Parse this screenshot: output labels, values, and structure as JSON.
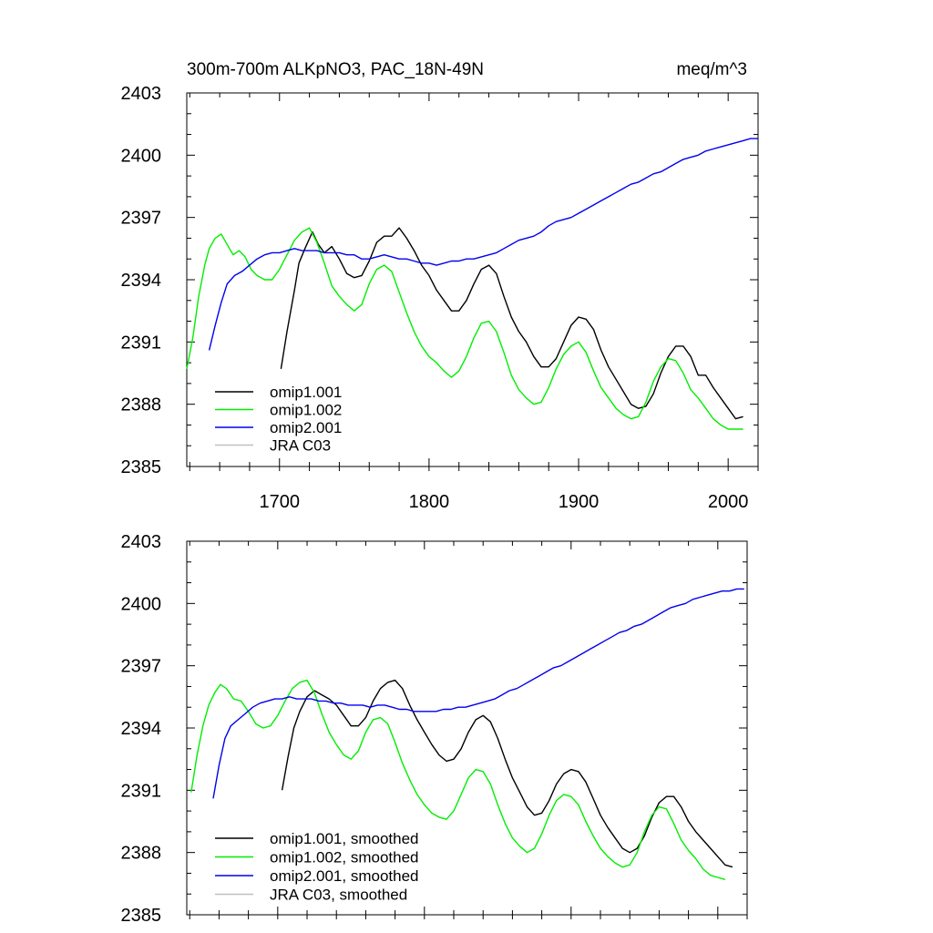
{
  "title_left": "300m-700m ALKpNO3, PAC_18N-49N",
  "title_right": "meq/m^3",
  "colors": {
    "omip1_001": "#000000",
    "omip1_002": "#00ee00",
    "omip2_001": "#0000ee",
    "jra": "#c0c0c0"
  },
  "chart_data": [
    {
      "type": "line",
      "title": "300m-700m ALKpNO3, PAC_18N-49N",
      "units": "meq/m^3",
      "xlim": [
        1638,
        2020
      ],
      "ylim": [
        2385,
        2403
      ],
      "xticks": [
        1700,
        1800,
        1900,
        2000
      ],
      "xtick_labels": [
        "1700",
        "1800",
        "1900",
        "2000"
      ],
      "yticks": [
        2385,
        2388,
        2391,
        2394,
        2397,
        2400,
        2403
      ],
      "ytick_labels": [
        "2385",
        "2388",
        "2391",
        "2394",
        "2397",
        "2400",
        "2403"
      ],
      "legend": [
        "omip1.001",
        "omip1.002",
        "omip2.001",
        "JRA C03"
      ],
      "series": [
        {
          "name": "omip1.001",
          "color": "#000000",
          "x": [
            1701,
            1705,
            1710,
            1713,
            1717,
            1722,
            1726,
            1730,
            1735,
            1740,
            1745,
            1750,
            1755,
            1760,
            1765,
            1770,
            1775,
            1780,
            1785,
            1790,
            1795,
            1800,
            1805,
            1810,
            1815,
            1820,
            1825,
            1830,
            1835,
            1840,
            1845,
            1850,
            1855,
            1860,
            1865,
            1870,
            1875,
            1880,
            1885,
            1890,
            1895,
            1900,
            1905,
            1910,
            1915,
            1920,
            1925,
            1930,
            1935,
            1940,
            1945,
            1950,
            1955,
            1960,
            1965,
            1970,
            1975,
            1980,
            1985,
            1990,
            1995,
            2000,
            2005,
            2010
          ],
          "y": [
            2389.7,
            2391.5,
            2393.5,
            2394.8,
            2395.5,
            2396.3,
            2395.7,
            2395.3,
            2395.6,
            2395.0,
            2394.3,
            2394.1,
            2394.2,
            2394.9,
            2395.8,
            2396.1,
            2396.1,
            2396.5,
            2396.0,
            2395.4,
            2394.7,
            2394.2,
            2393.5,
            2393.0,
            2392.5,
            2392.5,
            2393.0,
            2393.8,
            2394.5,
            2394.7,
            2394.3,
            2393.2,
            2392.2,
            2391.5,
            2391.0,
            2390.3,
            2389.8,
            2389.8,
            2390.2,
            2391.0,
            2391.8,
            2392.2,
            2392.1,
            2391.6,
            2390.6,
            2389.8,
            2389.2,
            2388.6,
            2388.0,
            2387.8,
            2387.9,
            2388.5,
            2389.5,
            2390.3,
            2390.8,
            2390.8,
            2390.3,
            2389.4,
            2389.4,
            2388.8,
            2388.3,
            2387.8,
            2387.3,
            2387.4
          ]
        },
        {
          "name": "omip1.002",
          "color": "#00ee00",
          "x": [
            1638,
            1642,
            1646,
            1650,
            1653,
            1657,
            1661,
            1665,
            1669,
            1673,
            1677,
            1681,
            1685,
            1690,
            1695,
            1700,
            1705,
            1710,
            1715,
            1720,
            1725,
            1730,
            1735,
            1740,
            1745,
            1750,
            1755,
            1760,
            1765,
            1770,
            1775,
            1780,
            1785,
            1790,
            1795,
            1800,
            1805,
            1810,
            1815,
            1820,
            1825,
            1830,
            1835,
            1840,
            1845,
            1850,
            1855,
            1860,
            1865,
            1870,
            1875,
            1880,
            1885,
            1890,
            1895,
            1900,
            1905,
            1910,
            1915,
            1920,
            1925,
            1930,
            1935,
            1940,
            1945,
            1950,
            1955,
            1960,
            1965,
            1970,
            1975,
            1980,
            1985,
            1990,
            1995,
            2000,
            2005,
            2010
          ],
          "y": [
            2389.7,
            2391.2,
            2393.2,
            2394.7,
            2395.5,
            2396.0,
            2396.2,
            2395.7,
            2395.2,
            2395.4,
            2395.1,
            2394.5,
            2394.2,
            2394.0,
            2394.0,
            2394.5,
            2395.2,
            2395.9,
            2396.3,
            2396.5,
            2395.8,
            2394.8,
            2393.7,
            2393.2,
            2392.8,
            2392.5,
            2392.8,
            2393.8,
            2394.5,
            2394.7,
            2394.4,
            2393.4,
            2392.4,
            2391.5,
            2390.8,
            2390.3,
            2390.0,
            2389.6,
            2389.3,
            2389.6,
            2390.3,
            2391.2,
            2391.9,
            2392.0,
            2391.5,
            2390.5,
            2389.4,
            2388.7,
            2388.3,
            2388.0,
            2388.1,
            2388.8,
            2389.7,
            2390.4,
            2390.8,
            2391.0,
            2390.5,
            2389.6,
            2388.8,
            2388.3,
            2387.8,
            2387.5,
            2387.3,
            2387.4,
            2388.1,
            2389.1,
            2389.8,
            2390.2,
            2390.1,
            2389.5,
            2388.7,
            2388.3,
            2387.8,
            2387.3,
            2387.0,
            2386.8,
            2386.8,
            2386.8
          ]
        },
        {
          "name": "omip2.001",
          "color": "#0000ee",
          "x": [
            1653,
            1657,
            1661,
            1665,
            1670,
            1675,
            1680,
            1685,
            1690,
            1695,
            1700,
            1705,
            1710,
            1715,
            1720,
            1725,
            1730,
            1735,
            1740,
            1745,
            1750,
            1755,
            1760,
            1765,
            1770,
            1775,
            1780,
            1785,
            1790,
            1795,
            1800,
            1805,
            1810,
            1815,
            1820,
            1825,
            1830,
            1835,
            1840,
            1845,
            1850,
            1855,
            1860,
            1865,
            1870,
            1875,
            1880,
            1885,
            1890,
            1895,
            1900,
            1905,
            1910,
            1915,
            1920,
            1925,
            1930,
            1935,
            1940,
            1945,
            1950,
            1955,
            1960,
            1965,
            1970,
            1975,
            1980,
            1985,
            1990,
            1995,
            2000,
            2005,
            2010,
            2015,
            2020
          ],
          "y": [
            2390.6,
            2391.8,
            2392.9,
            2393.8,
            2394.2,
            2394.4,
            2394.7,
            2395.0,
            2395.2,
            2395.3,
            2395.3,
            2395.4,
            2395.5,
            2395.4,
            2395.4,
            2395.4,
            2395.3,
            2395.3,
            2395.3,
            2395.2,
            2395.2,
            2395.0,
            2395.0,
            2395.1,
            2395.2,
            2395.1,
            2395.0,
            2395.0,
            2394.9,
            2394.8,
            2394.8,
            2394.7,
            2394.8,
            2394.9,
            2394.9,
            2395.0,
            2395.0,
            2395.1,
            2395.2,
            2395.3,
            2395.5,
            2395.7,
            2395.9,
            2396.0,
            2396.1,
            2396.3,
            2396.6,
            2396.8,
            2396.9,
            2397.0,
            2397.2,
            2397.4,
            2397.6,
            2397.8,
            2398.0,
            2398.2,
            2398.4,
            2398.6,
            2398.7,
            2398.9,
            2399.1,
            2399.2,
            2399.4,
            2399.6,
            2399.8,
            2399.9,
            2400.0,
            2400.2,
            2400.3,
            2400.4,
            2400.5,
            2400.6,
            2400.7,
            2400.8,
            2400.8
          ]
        },
        {
          "name": "JRA C03",
          "color": "#c0c0c0",
          "x": [],
          "y": []
        }
      ]
    },
    {
      "type": "line",
      "title": "",
      "xlim": [
        1638,
        2020
      ],
      "ylim": [
        2385,
        2403
      ],
      "xticks": [
        1700,
        1800,
        1900,
        2000
      ],
      "yticks": [
        2385,
        2388,
        2391,
        2394,
        2397,
        2400,
        2403
      ],
      "ytick_labels": [
        "2385",
        "2388",
        "2391",
        "2394",
        "2397",
        "2400",
        "2403"
      ],
      "legend": [
        "omip1.001, smoothed",
        "omip1.002, smoothed",
        "omip2.001, smoothed",
        "JRA C03, smoothed"
      ],
      "series": [
        {
          "name": "omip1.001, smoothed",
          "color": "#000000",
          "x": [
            1703,
            1707,
            1711,
            1715,
            1720,
            1725,
            1730,
            1735,
            1740,
            1745,
            1750,
            1755,
            1760,
            1765,
            1770,
            1775,
            1780,
            1785,
            1790,
            1795,
            1800,
            1805,
            1810,
            1815,
            1820,
            1825,
            1830,
            1835,
            1840,
            1845,
            1850,
            1855,
            1860,
            1865,
            1870,
            1875,
            1880,
            1885,
            1890,
            1895,
            1900,
            1905,
            1910,
            1915,
            1920,
            1925,
            1930,
            1935,
            1940,
            1945,
            1950,
            1955,
            1960,
            1965,
            1970,
            1975,
            1980,
            1985,
            1990,
            1995,
            2000,
            2005,
            2010
          ],
          "y": [
            2391.0,
            2392.6,
            2394.0,
            2394.8,
            2395.5,
            2395.8,
            2395.6,
            2395.4,
            2395.1,
            2394.6,
            2394.1,
            2394.1,
            2394.5,
            2395.3,
            2395.9,
            2396.2,
            2396.3,
            2395.9,
            2395.1,
            2394.4,
            2393.8,
            2393.2,
            2392.7,
            2392.4,
            2392.5,
            2393.0,
            2393.8,
            2394.4,
            2394.6,
            2394.3,
            2393.5,
            2392.5,
            2391.6,
            2390.9,
            2390.2,
            2389.8,
            2389.9,
            2390.5,
            2391.3,
            2391.8,
            2392.0,
            2391.9,
            2391.4,
            2390.6,
            2389.8,
            2389.2,
            2388.7,
            2388.2,
            2388.0,
            2388.2,
            2388.8,
            2389.7,
            2390.4,
            2390.7,
            2390.7,
            2390.2,
            2389.5,
            2389.0,
            2388.6,
            2388.2,
            2387.8,
            2387.4,
            2387.3
          ]
        },
        {
          "name": "omip1.002, smoothed",
          "color": "#00ee00",
          "x": [
            1641,
            1645,
            1649,
            1653,
            1657,
            1661,
            1665,
            1670,
            1675,
            1680,
            1685,
            1690,
            1695,
            1700,
            1705,
            1710,
            1715,
            1720,
            1725,
            1730,
            1735,
            1740,
            1745,
            1750,
            1755,
            1760,
            1765,
            1770,
            1775,
            1780,
            1785,
            1790,
            1795,
            1800,
            1805,
            1810,
            1815,
            1820,
            1825,
            1830,
            1835,
            1840,
            1845,
            1850,
            1855,
            1860,
            1865,
            1870,
            1875,
            1880,
            1885,
            1890,
            1895,
            1900,
            1905,
            1910,
            1915,
            1920,
            1925,
            1930,
            1935,
            1940,
            1945,
            1950,
            1955,
            1960,
            1965,
            1970,
            1975,
            1980,
            1985,
            1990,
            1995,
            2000,
            2005
          ],
          "y": [
            2390.9,
            2392.7,
            2394.1,
            2395.1,
            2395.7,
            2396.1,
            2395.9,
            2395.4,
            2395.3,
            2394.8,
            2394.2,
            2394.0,
            2394.1,
            2394.6,
            2395.3,
            2395.9,
            2396.2,
            2396.3,
            2395.7,
            2394.7,
            2393.8,
            2393.2,
            2392.7,
            2392.5,
            2392.9,
            2393.8,
            2394.4,
            2394.5,
            2394.2,
            2393.3,
            2392.3,
            2391.5,
            2390.8,
            2390.3,
            2389.9,
            2389.7,
            2389.6,
            2390.0,
            2390.8,
            2391.6,
            2392.0,
            2391.9,
            2391.3,
            2390.3,
            2389.4,
            2388.7,
            2388.3,
            2388.0,
            2388.2,
            2388.9,
            2389.8,
            2390.5,
            2390.8,
            2390.7,
            2390.3,
            2389.5,
            2388.8,
            2388.2,
            2387.8,
            2387.5,
            2387.3,
            2387.4,
            2388.0,
            2389.0,
            2389.8,
            2390.2,
            2390.1,
            2389.4,
            2388.6,
            2388.1,
            2387.7,
            2387.2,
            2386.9,
            2386.8,
            2386.7
          ]
        },
        {
          "name": "omip2.001, smoothed",
          "color": "#0000ee",
          "x": [
            1656,
            1660,
            1664,
            1668,
            1673,
            1678,
            1683,
            1688,
            1693,
            1698,
            1703,
            1708,
            1713,
            1718,
            1723,
            1728,
            1733,
            1738,
            1743,
            1748,
            1753,
            1758,
            1763,
            1768,
            1773,
            1778,
            1783,
            1788,
            1793,
            1798,
            1803,
            1808,
            1813,
            1818,
            1823,
            1828,
            1833,
            1838,
            1843,
            1848,
            1853,
            1858,
            1863,
            1868,
            1873,
            1878,
            1883,
            1888,
            1893,
            1898,
            1903,
            1908,
            1913,
            1918,
            1923,
            1928,
            1933,
            1938,
            1943,
            1948,
            1953,
            1958,
            1963,
            1968,
            1973,
            1978,
            1983,
            1988,
            1993,
            1998,
            2003,
            2008,
            2013,
            2018
          ],
          "y": [
            2390.6,
            2392.2,
            2393.5,
            2394.1,
            2394.4,
            2394.7,
            2395.0,
            2395.2,
            2395.3,
            2395.4,
            2395.4,
            2395.5,
            2395.4,
            2395.4,
            2395.4,
            2395.3,
            2395.3,
            2395.2,
            2395.2,
            2395.1,
            2395.1,
            2395.1,
            2395.0,
            2395.1,
            2395.1,
            2395.0,
            2394.9,
            2394.9,
            2394.8,
            2394.8,
            2394.8,
            2394.8,
            2394.9,
            2394.9,
            2395.0,
            2395.0,
            2395.1,
            2395.2,
            2395.3,
            2395.4,
            2395.6,
            2395.8,
            2395.9,
            2396.1,
            2396.3,
            2396.5,
            2396.7,
            2396.9,
            2397.0,
            2397.2,
            2397.4,
            2397.6,
            2397.8,
            2398.0,
            2398.2,
            2398.4,
            2398.6,
            2398.7,
            2398.9,
            2399.0,
            2399.2,
            2399.4,
            2399.6,
            2399.8,
            2399.9,
            2400.0,
            2400.2,
            2400.3,
            2400.4,
            2400.5,
            2400.6,
            2400.6,
            2400.7,
            2400.7
          ]
        },
        {
          "name": "JRA C03, smoothed",
          "color": "#c0c0c0",
          "x": [],
          "y": []
        }
      ]
    }
  ]
}
